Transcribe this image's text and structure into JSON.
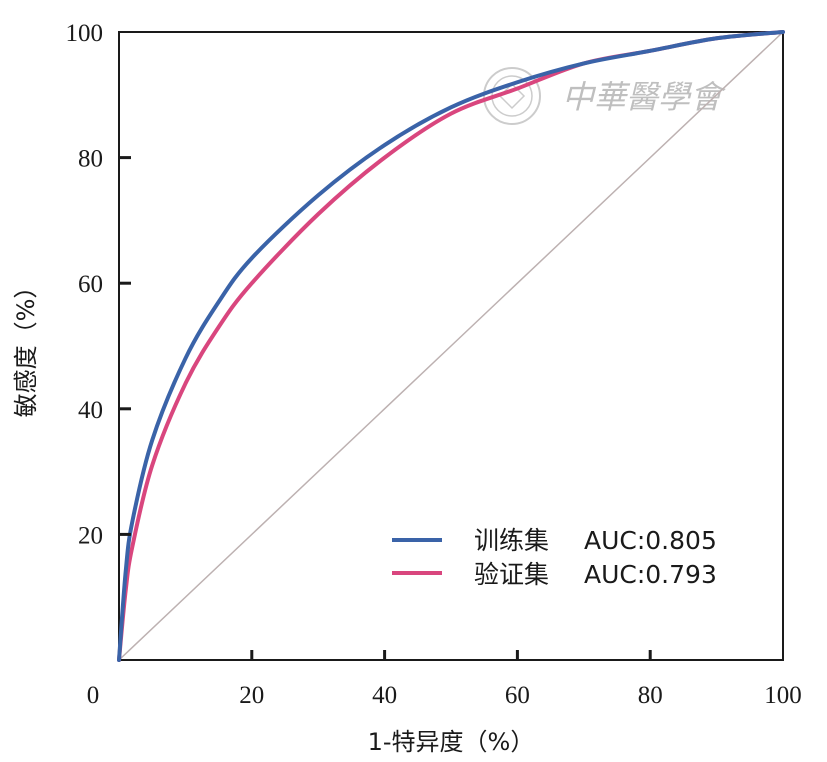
{
  "chart_data": {
    "type": "line",
    "xlabel": "1-特异度（%）",
    "ylabel": "敏感度（%）",
    "xlim": [
      0,
      100
    ],
    "ylim": [
      0,
      100
    ],
    "x_ticks": [
      "0",
      "20",
      "40",
      "60",
      "80",
      "100"
    ],
    "y_ticks": [
      "20",
      "40",
      "60",
      "80",
      "100"
    ],
    "legend_position": "bottom-right",
    "grid": false,
    "series": [
      {
        "name": "训练集",
        "auc_label": "AUC:0.805",
        "color": "#3a63a8",
        "x": [
          0,
          1,
          2,
          5,
          10,
          15,
          20,
          30,
          40,
          50,
          60,
          70,
          80,
          90,
          100
        ],
        "y": [
          0,
          14,
          22,
          35,
          48,
          57,
          64,
          74,
          82,
          88,
          92,
          95,
          97,
          99,
          100
        ]
      },
      {
        "name": "验证集",
        "auc_label": "AUC:0.793",
        "color": "#d9467e",
        "x": [
          0,
          1,
          2,
          5,
          10,
          15,
          20,
          30,
          40,
          50,
          60,
          70,
          80,
          90,
          100
        ],
        "y": [
          0,
          11,
          18,
          31,
          44,
          53,
          60,
          71,
          80,
          87,
          91,
          95,
          97,
          99,
          100
        ]
      },
      {
        "name": "",
        "color": "#bdb1b1",
        "x": [
          0,
          100
        ],
        "y": [
          0,
          100
        ]
      }
    ],
    "watermark": {
      "text": "中華醫學會",
      "icon": "society-seal-icon"
    }
  }
}
